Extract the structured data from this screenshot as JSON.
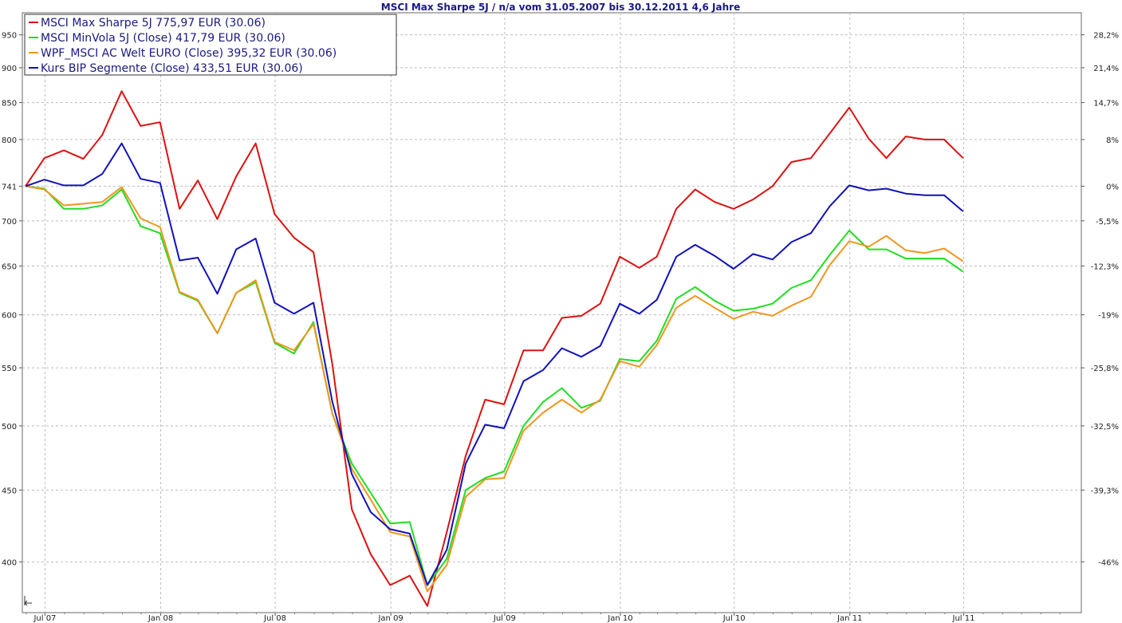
{
  "chart_data": {
    "type": "line",
    "title": "MSCI Max Sharpe 5J / n/a vom 31.05.2007 bis 30.12.2011 4,6 Jahre",
    "xlabel": "",
    "ylabel": "",
    "y_scale": "log",
    "ylim": [
      368,
      985
    ],
    "grid": true,
    "legend_position": "top-left",
    "x_ticks": [
      "Jul 07",
      "Jan 08",
      "Jul 08",
      "Jan 09",
      "Jul 09",
      "Jan 10",
      "Jul 10",
      "Jan 11",
      "Jul 11"
    ],
    "y_ticks_left": [
      "950",
      "900",
      "850",
      "800",
      "741",
      "700",
      "650",
      "600",
      "550",
      "500",
      "450",
      "400"
    ],
    "y_ticks_right": [
      "28,2%",
      "21,4%",
      "14,7%",
      "8%",
      "0%",
      "-5,5%",
      "-12,3%",
      "-19%",
      "-25,8%",
      "-32,5%",
      "-39,3%",
      "-46%"
    ],
    "reference_value": 741,
    "x": [
      "2007-05-31",
      "2007-06-30",
      "2007-07-31",
      "2007-08-31",
      "2007-09-30",
      "2007-10-31",
      "2007-11-30",
      "2007-12-31",
      "2008-01-31",
      "2008-02-29",
      "2008-03-31",
      "2008-04-30",
      "2008-05-31",
      "2008-06-30",
      "2008-07-31",
      "2008-08-31",
      "2008-09-30",
      "2008-10-31",
      "2008-11-30",
      "2008-12-31",
      "2009-01-31",
      "2009-02-28",
      "2009-03-31",
      "2009-04-30",
      "2009-05-31",
      "2009-06-30",
      "2009-07-31",
      "2009-08-31",
      "2009-09-30",
      "2009-10-31",
      "2009-11-30",
      "2009-12-31",
      "2010-01-31",
      "2010-02-28",
      "2010-03-31",
      "2010-04-30",
      "2010-05-31",
      "2010-06-30",
      "2010-07-31",
      "2010-08-31",
      "2010-09-30",
      "2010-10-31",
      "2010-11-30",
      "2010-12-31",
      "2011-01-31",
      "2011-02-28",
      "2011-03-31",
      "2011-04-30",
      "2011-05-31",
      "2011-06-30"
    ],
    "series": [
      {
        "name": "MSCI Max Sharpe 5J 775,97 EUR (30.06)",
        "color": "#dd1111",
        "values": [
          741,
          776,
          786,
          775,
          806,
          866,
          818,
          823,
          714,
          748,
          702,
          753,
          795,
          708,
          681,
          665,
          553,
          436,
          405,
          385,
          391,
          372,
          420,
          476,
          522,
          518,
          566,
          566,
          597,
          599,
          611,
          660,
          648,
          660,
          714,
          737,
          722,
          714,
          725,
          741,
          771,
          776,
          808,
          843,
          801,
          776,
          804,
          800,
          800,
          776
        ]
      },
      {
        "name": "MSCI MinVola 5J (Close) 417,79 EUR (30.06)",
        "color": "#22dd22",
        "values": [
          741,
          738,
          714,
          714,
          718,
          737,
          694,
          686,
          622,
          614,
          582,
          622,
          633,
          573,
          563,
          593,
          510,
          470,
          448,
          426,
          427,
          385,
          402,
          450,
          459,
          464,
          500,
          520,
          532,
          515,
          521,
          558,
          556,
          575,
          616,
          628,
          614,
          604,
          606,
          611,
          627,
          635,
          662,
          689,
          668,
          668,
          658,
          658,
          658,
          644
        ]
      },
      {
        "name": "WPF_MSCI AC Welt EURO (Close) 395,32 EUR (30.06)",
        "color": "#f0961e",
        "values": [
          741,
          737,
          718,
          720,
          722,
          740,
          703,
          693,
          623,
          615,
          582,
          622,
          635,
          574,
          566,
          591,
          510,
          466,
          443,
          420,
          417,
          381,
          398,
          445,
          458,
          459,
          496,
          511,
          522,
          511,
          522,
          556,
          551,
          571,
          607,
          619,
          607,
          596,
          603,
          599,
          609,
          618,
          651,
          677,
          671,
          683,
          667,
          664,
          669,
          655
        ]
      },
      {
        "name": "Kurs BIP Segmente (Close) 433,51 EUR (30.06)",
        "color": "#1111bb",
        "values": [
          741,
          749,
          742,
          742,
          756,
          795,
          750,
          745,
          656,
          659,
          621,
          668,
          680,
          612,
          601,
          612,
          520,
          462,
          434,
          422,
          419,
          385,
          408,
          470,
          501,
          498,
          538,
          548,
          568,
          560,
          570,
          611,
          601,
          615,
          660,
          673,
          661,
          647,
          663,
          657,
          676,
          686,
          717,
          742,
          736,
          738,
          732,
          730,
          730,
          711
        ]
      }
    ]
  }
}
